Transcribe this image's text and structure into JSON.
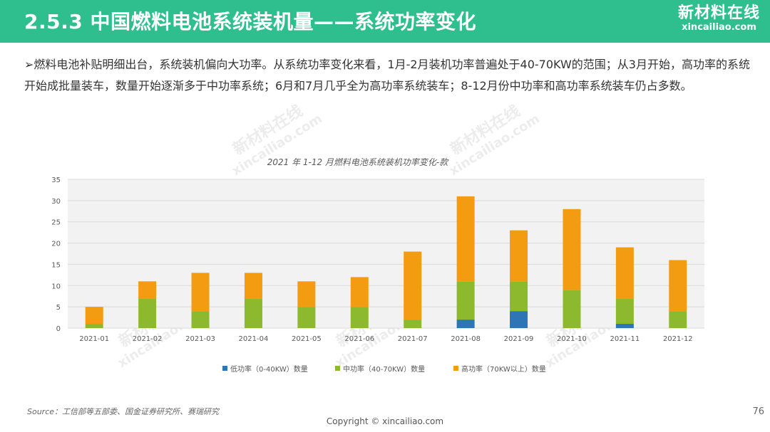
{
  "header": {
    "title": "2.5.3 中国燃料电池系统装机量——系统功率变化",
    "logo_cn": "新材料在线",
    "logo_en": "xincailiao.com"
  },
  "intro": {
    "bullet": "➢",
    "text": "燃料电池补贴明细出台，系统装机偏向大功率。从系统功率变化来看，1月-2月装机功率普遍处于40-70KW的范围；从3月开始，高功率的系统开始成批量装车，数量开始逐渐多于中功率系统；6月和7月几乎全为高功率系统装车；8-12月份中功率和高功率系统装车仍占多数。"
  },
  "watermark": {
    "cn": "新材料在线",
    "en": "xincailiao.com"
  },
  "chart_data": {
    "type": "bar",
    "stacked": true,
    "title": "2021 年 1-12 月燃料电池系统装机功率变化-款",
    "categories": [
      "2021-01",
      "2021-02",
      "2021-03",
      "2021-04",
      "2021-05",
      "2021-06",
      "2021-07",
      "2021-08",
      "2021-09",
      "2021-10",
      "2021-11",
      "2021-12"
    ],
    "series": [
      {
        "name": "低功率（0-40KW）数量",
        "color": "#2e75b6",
        "values": [
          0,
          0,
          0,
          0,
          0,
          0,
          0,
          2,
          4,
          0,
          1,
          0
        ]
      },
      {
        "name": "中功率（40-70KW）数量",
        "color": "#8db92e",
        "values": [
          1,
          7,
          4,
          7,
          5,
          5,
          2,
          9,
          7,
          9,
          6,
          4
        ]
      },
      {
        "name": "高功率（70KW以上）数量",
        "color": "#f39c12",
        "values": [
          4,
          4,
          9,
          6,
          6,
          7,
          16,
          20,
          12,
          19,
          12,
          12
        ]
      }
    ],
    "ylim": [
      0,
      35
    ],
    "yticks": [
      0,
      5,
      10,
      15,
      20,
      25,
      30,
      35
    ],
    "grid": true,
    "legend": "bottom"
  },
  "footer": {
    "source": "Source：工信部等五部委、国金证券研究所、赛瑞研究",
    "copyright": "Copyright © xincailiao.com",
    "page": "76"
  }
}
